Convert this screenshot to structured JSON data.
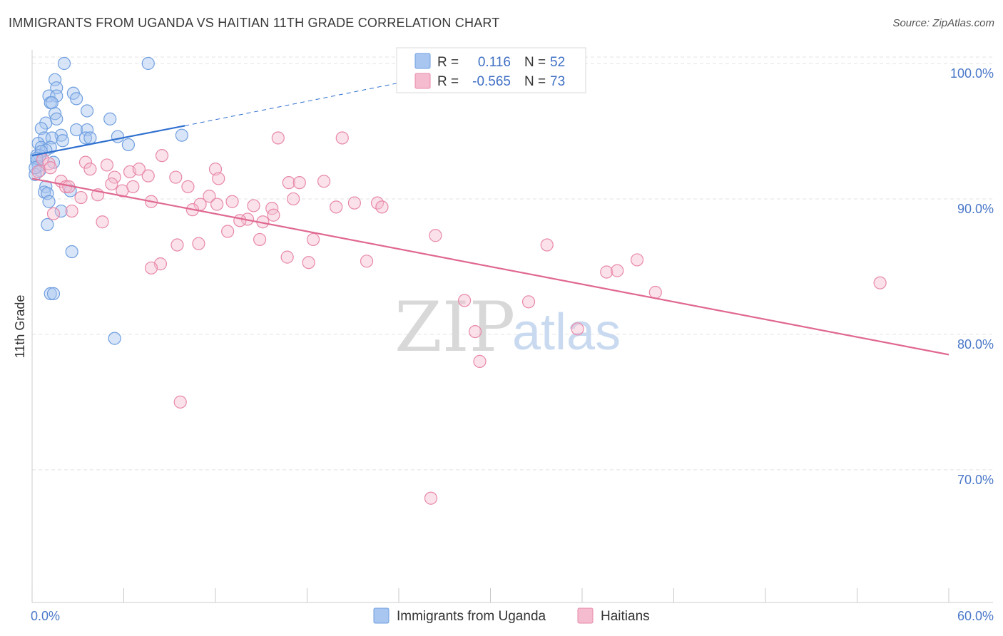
{
  "title": "IMMIGRANTS FROM UGANDA VS HAITIAN 11TH GRADE CORRELATION CHART",
  "source": "Source: ZipAtlas.com",
  "watermark": {
    "zip": "ZIP",
    "atlas": "atlas"
  },
  "colors": {
    "blue": "#6f9fe0",
    "blue_fill": "#a9c6f0",
    "blue_line": "#2e6fcf",
    "pink": "#e888a8",
    "pink_fill": "#f5bcd0",
    "pink_line": "#e06890",
    "grid": "#e3e3e3",
    "tick_text": "#4a78c8"
  },
  "legend": {
    "rows": [
      {
        "r_label": "R =",
        "r_value": "0.116",
        "n_label": "N =",
        "n_value": "52",
        "series": "blue"
      },
      {
        "r_label": "R =",
        "r_value": "-0.565",
        "n_label": "N =",
        "n_value": "73",
        "series": "pink"
      }
    ]
  },
  "bottom_legend": [
    "Immigrants from Uganda",
    "Haitians"
  ],
  "chart_data": {
    "type": "scatter",
    "title": "IMMIGRANTS FROM UGANDA VS HAITIAN 11TH GRADE CORRELATION CHART",
    "xlabel": "",
    "ylabel": "11th Grade",
    "xlim": [
      0,
      60
    ],
    "ylim": [
      60.2,
      101.0
    ],
    "x_tick_labels": [
      "0.0%",
      "60.0%"
    ],
    "y_ticks": [
      70,
      80,
      90,
      100
    ],
    "y_tick_labels": [
      "70.0%",
      "80.0%",
      "90.0%",
      "100.0%"
    ],
    "series": [
      {
        "name": "Immigrants from Uganda",
        "color": "blue",
        "trend": {
          "x0": 0.0,
          "y0": 93.2,
          "x1": 10.0,
          "y1": 95.4,
          "dash_to_x": 25.5,
          "dash_to_y": 98.9
        },
        "points": [
          [
            2.1,
            100.0
          ],
          [
            7.6,
            100.0
          ],
          [
            1.5,
            98.8
          ],
          [
            1.6,
            98.2
          ],
          [
            1.1,
            97.6
          ],
          [
            1.6,
            97.6
          ],
          [
            2.7,
            97.8
          ],
          [
            2.9,
            97.4
          ],
          [
            1.2,
            97.1
          ],
          [
            1.3,
            97.1
          ],
          [
            1.5,
            96.3
          ],
          [
            3.6,
            96.5
          ],
          [
            5.1,
            95.9
          ],
          [
            0.9,
            95.6
          ],
          [
            1.6,
            95.9
          ],
          [
            0.6,
            95.2
          ],
          [
            2.9,
            95.1
          ],
          [
            3.6,
            95.1
          ],
          [
            1.9,
            94.7
          ],
          [
            0.8,
            94.5
          ],
          [
            1.3,
            94.5
          ],
          [
            2.0,
            94.3
          ],
          [
            3.5,
            94.5
          ],
          [
            3.8,
            94.5
          ],
          [
            5.6,
            94.6
          ],
          [
            9.8,
            94.7
          ],
          [
            0.4,
            94.1
          ],
          [
            6.3,
            94.0
          ],
          [
            0.6,
            93.8
          ],
          [
            1.2,
            93.8
          ],
          [
            0.9,
            93.6
          ],
          [
            0.3,
            93.2
          ],
          [
            0.5,
            93.2
          ],
          [
            0.3,
            92.8
          ],
          [
            1.4,
            92.7
          ],
          [
            0.4,
            92.4
          ],
          [
            0.5,
            92.1
          ],
          [
            0.2,
            91.8
          ],
          [
            0.9,
            90.9
          ],
          [
            2.5,
            90.6
          ],
          [
            0.8,
            90.5
          ],
          [
            1.0,
            90.4
          ],
          [
            1.1,
            89.8
          ],
          [
            1.9,
            89.1
          ],
          [
            1.0,
            88.1
          ],
          [
            2.6,
            86.1
          ],
          [
            1.2,
            83.0
          ],
          [
            1.4,
            83.0
          ],
          [
            5.4,
            79.7
          ],
          [
            0.6,
            93.5
          ],
          [
            0.3,
            93.0
          ],
          [
            0.2,
            92.3
          ]
        ]
      },
      {
        "name": "Haitians",
        "color": "pink",
        "trend": {
          "x0": 0.0,
          "y0": 91.5,
          "x1": 60.0,
          "y1": 78.5
        },
        "points": [
          [
            16.1,
            94.5
          ],
          [
            20.3,
            94.5
          ],
          [
            8.5,
            93.2
          ],
          [
            0.7,
            92.9
          ],
          [
            1.1,
            92.6
          ],
          [
            3.5,
            92.7
          ],
          [
            4.9,
            92.5
          ],
          [
            3.8,
            92.2
          ],
          [
            6.4,
            92.0
          ],
          [
            7.0,
            92.2
          ],
          [
            12.0,
            92.2
          ],
          [
            5.4,
            91.6
          ],
          [
            7.6,
            91.7
          ],
          [
            9.4,
            91.6
          ],
          [
            12.2,
            91.5
          ],
          [
            1.9,
            91.3
          ],
          [
            2.2,
            90.9
          ],
          [
            6.6,
            90.9
          ],
          [
            5.2,
            91.1
          ],
          [
            10.2,
            90.9
          ],
          [
            16.8,
            91.2
          ],
          [
            17.5,
            91.2
          ],
          [
            19.1,
            91.3
          ],
          [
            5.9,
            90.6
          ],
          [
            4.3,
            90.3
          ],
          [
            3.2,
            90.1
          ],
          [
            11.6,
            90.2
          ],
          [
            7.8,
            89.8
          ],
          [
            11.0,
            89.6
          ],
          [
            12.1,
            89.6
          ],
          [
            13.1,
            89.8
          ],
          [
            14.5,
            89.5
          ],
          [
            17.1,
            90.0
          ],
          [
            21.1,
            89.7
          ],
          [
            22.6,
            89.7
          ],
          [
            22.9,
            89.4
          ],
          [
            19.9,
            89.4
          ],
          [
            10.5,
            89.2
          ],
          [
            15.7,
            89.3
          ],
          [
            1.4,
            88.9
          ],
          [
            2.6,
            89.1
          ],
          [
            14.1,
            88.5
          ],
          [
            15.1,
            88.3
          ],
          [
            15.8,
            88.8
          ],
          [
            4.6,
            88.3
          ],
          [
            13.6,
            88.4
          ],
          [
            12.8,
            87.6
          ],
          [
            26.4,
            87.3
          ],
          [
            14.9,
            87.0
          ],
          [
            18.4,
            87.0
          ],
          [
            9.5,
            86.6
          ],
          [
            10.9,
            86.7
          ],
          [
            33.7,
            86.6
          ],
          [
            16.7,
            85.7
          ],
          [
            18.1,
            85.3
          ],
          [
            21.9,
            85.4
          ],
          [
            8.4,
            85.2
          ],
          [
            7.8,
            84.9
          ],
          [
            39.6,
            85.5
          ],
          [
            37.6,
            84.6
          ],
          [
            38.3,
            84.7
          ],
          [
            55.5,
            83.8
          ],
          [
            40.8,
            83.1
          ],
          [
            28.3,
            82.5
          ],
          [
            32.5,
            82.4
          ],
          [
            29.0,
            80.2
          ],
          [
            35.7,
            80.4
          ],
          [
            29.3,
            78.0
          ],
          [
            9.7,
            75.0
          ],
          [
            26.1,
            67.9
          ],
          [
            0.4,
            92.0
          ],
          [
            1.2,
            92.3
          ],
          [
            2.4,
            90.9
          ]
        ]
      }
    ]
  }
}
